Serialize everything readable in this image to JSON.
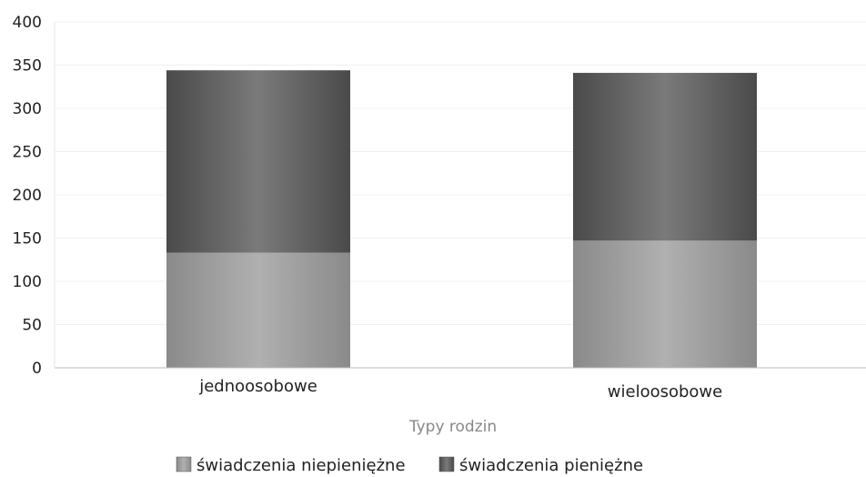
{
  "chart_data": {
    "type": "bar",
    "stacked": true,
    "categories": [
      "jednoosobowe",
      "wieloosobowe"
    ],
    "series": [
      {
        "name": "świadczenia niepieniężne",
        "values": [
          133,
          147
        ],
        "color": "#9a9a9a"
      },
      {
        "name": "świadczenia pieniężne",
        "values": [
          211,
          194
        ],
        "color": "#626262"
      }
    ],
    "xlabel": "Typy rodzin",
    "ylabel": "",
    "ylim": [
      0,
      400
    ],
    "yticks": [
      0,
      50,
      100,
      150,
      200,
      250,
      300,
      350,
      400
    ],
    "grid": true,
    "legend": "bottom-center"
  }
}
